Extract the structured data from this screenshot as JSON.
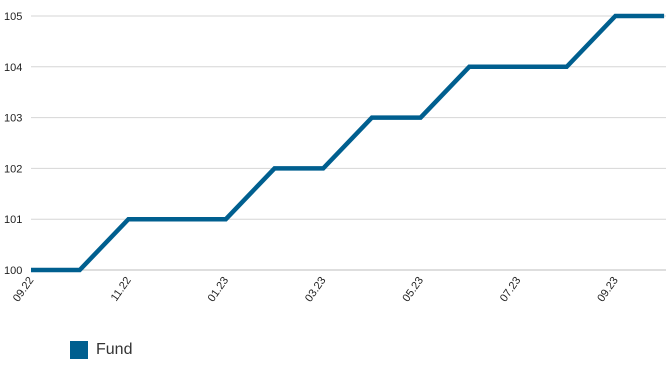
{
  "chart_data": {
    "type": "line",
    "x_tick_labels": [
      "09.22",
      "11.22",
      "01.23",
      "03.23",
      "05.23",
      "07.23",
      "09.23"
    ],
    "y_ticks": [
      100,
      101,
      102,
      103,
      104,
      105
    ],
    "ylim": [
      100,
      105
    ],
    "grid": true,
    "legend_position": "bottom-left",
    "series": [
      {
        "name": "Fund",
        "color": "#005f8f",
        "x": [
          "09.22",
          "10.22",
          "11.22",
          "12.22",
          "01.23",
          "02.23",
          "03.23",
          "04.23",
          "05.23",
          "06.23",
          "07.23",
          "08.23",
          "09.23",
          "10.23"
        ],
        "values": [
          100,
          100,
          101,
          101,
          101,
          102,
          102,
          103,
          103,
          104,
          104,
          104,
          105,
          105
        ]
      }
    ]
  }
}
